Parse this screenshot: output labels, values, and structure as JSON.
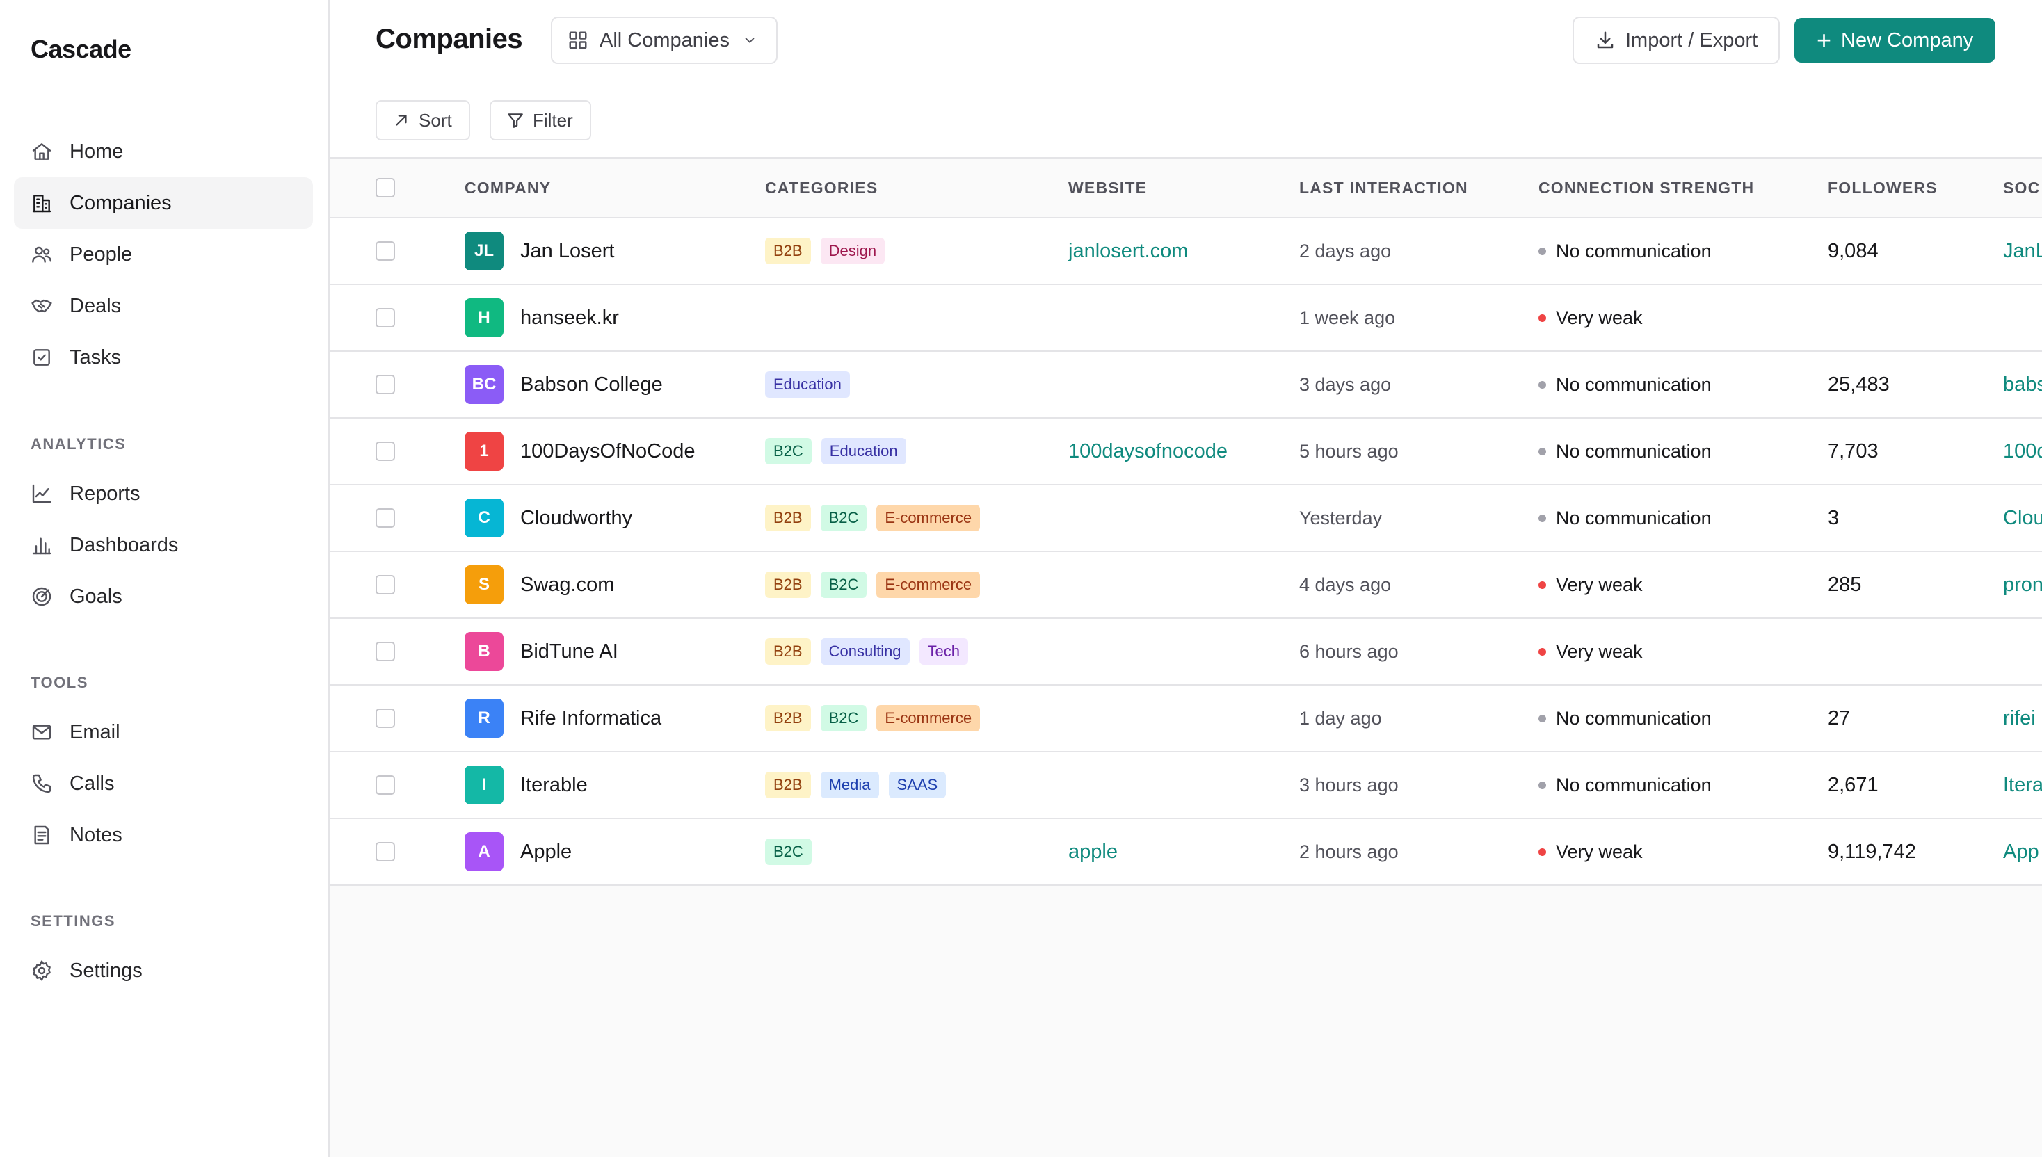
{
  "app": {
    "name": "Cascade"
  },
  "sidebar": {
    "items": [
      {
        "label": "Home",
        "icon": "home-icon"
      },
      {
        "label": "Companies",
        "icon": "building-icon",
        "active": true
      },
      {
        "label": "People",
        "icon": "people-icon"
      },
      {
        "label": "Deals",
        "icon": "handshake-icon"
      },
      {
        "label": "Tasks",
        "icon": "checkbox-icon"
      }
    ],
    "analytics": {
      "label": "ANALYTICS",
      "items": [
        {
          "label": "Reports",
          "icon": "line-chart-icon"
        },
        {
          "label": "Dashboards",
          "icon": "bar-chart-icon"
        },
        {
          "label": "Goals",
          "icon": "target-icon"
        }
      ]
    },
    "tools": {
      "label": "TOOLS",
      "items": [
        {
          "label": "Email",
          "icon": "mail-icon"
        },
        {
          "label": "Calls",
          "icon": "phone-icon"
        },
        {
          "label": "Notes",
          "icon": "note-icon"
        }
      ]
    },
    "settings": {
      "label": "SETTINGS",
      "items": [
        {
          "label": "Settings",
          "icon": "gear-icon"
        }
      ]
    }
  },
  "header": {
    "title": "Companies",
    "view_select": "All Companies",
    "import_export": "Import / Export",
    "new_company": "New Company"
  },
  "toolbar": {
    "sort": "Sort",
    "filter": "Filter"
  },
  "table": {
    "columns": [
      "COMPANY",
      "CATEGORIES",
      "WEBSITE",
      "LAST INTERACTION",
      "CONNECTION STRENGTH",
      "FOLLOWERS",
      "SOC"
    ],
    "rows": [
      {
        "initials": "JL",
        "color": "#0f8a7e",
        "name": "Jan Losert",
        "tags": [
          "B2B",
          "Design"
        ],
        "website": "janlosert.com",
        "last": "2 days ago",
        "strength": "No communication",
        "strength_color": "#a1a1aa",
        "followers": "9,084",
        "social": "JanL"
      },
      {
        "initials": "H",
        "color": "#10b981",
        "name": "hanseek.kr",
        "tags": [],
        "website": "",
        "last": "1 week ago",
        "strength": "Very weak",
        "strength_color": "#ef4444",
        "followers": "",
        "social": ""
      },
      {
        "initials": "BC",
        "color": "#8b5cf6",
        "name": "Babson College",
        "tags": [
          "Education"
        ],
        "website": "",
        "last": "3 days ago",
        "strength": "No communication",
        "strength_color": "#a1a1aa",
        "followers": "25,483",
        "social": "babs"
      },
      {
        "initials": "1",
        "color": "#ef4444",
        "name": "100DaysOfNoCode",
        "tags": [
          "B2C",
          "Education"
        ],
        "website": "100daysofnocode",
        "last": "5 hours ago",
        "strength": "No communication",
        "strength_color": "#a1a1aa",
        "followers": "7,703",
        "social": "100d"
      },
      {
        "initials": "C",
        "color": "#06b6d4",
        "name": "Cloudworthy",
        "tags": [
          "B2B",
          "B2C",
          "E-commerce"
        ],
        "website": "",
        "last": "Yesterday",
        "strength": "No communication",
        "strength_color": "#a1a1aa",
        "followers": "3",
        "social": "Clou"
      },
      {
        "initials": "S",
        "color": "#f59e0b",
        "name": "Swag.com",
        "tags": [
          "B2B",
          "B2C",
          "E-commerce"
        ],
        "website": "",
        "last": "4 days ago",
        "strength": "Very weak",
        "strength_color": "#ef4444",
        "followers": "285",
        "social": "pron"
      },
      {
        "initials": "B",
        "color": "#ec4899",
        "name": "BidTune AI",
        "tags": [
          "B2B",
          "Consulting",
          "Tech"
        ],
        "website": "",
        "last": "6 hours ago",
        "strength": "Very weak",
        "strength_color": "#ef4444",
        "followers": "",
        "social": ""
      },
      {
        "initials": "R",
        "color": "#3b82f6",
        "name": "Rife Informatica",
        "tags": [
          "B2B",
          "B2C",
          "E-commerce"
        ],
        "website": "",
        "last": "1 day ago",
        "strength": "No communication",
        "strength_color": "#a1a1aa",
        "followers": "27",
        "social": "rifei"
      },
      {
        "initials": "I",
        "color": "#14b8a6",
        "name": "Iterable",
        "tags": [
          "B2B",
          "Media",
          "SAAS"
        ],
        "website": "",
        "last": "3 hours ago",
        "strength": "No communication",
        "strength_color": "#a1a1aa",
        "followers": "2,671",
        "social": "Itera"
      },
      {
        "initials": "A",
        "color": "#a855f7",
        "name": "Apple",
        "tags": [
          "B2C"
        ],
        "website": "apple",
        "last": "2 hours ago",
        "strength": "Very weak",
        "strength_color": "#ef4444",
        "followers": "9,119,742",
        "social": "App"
      }
    ]
  }
}
